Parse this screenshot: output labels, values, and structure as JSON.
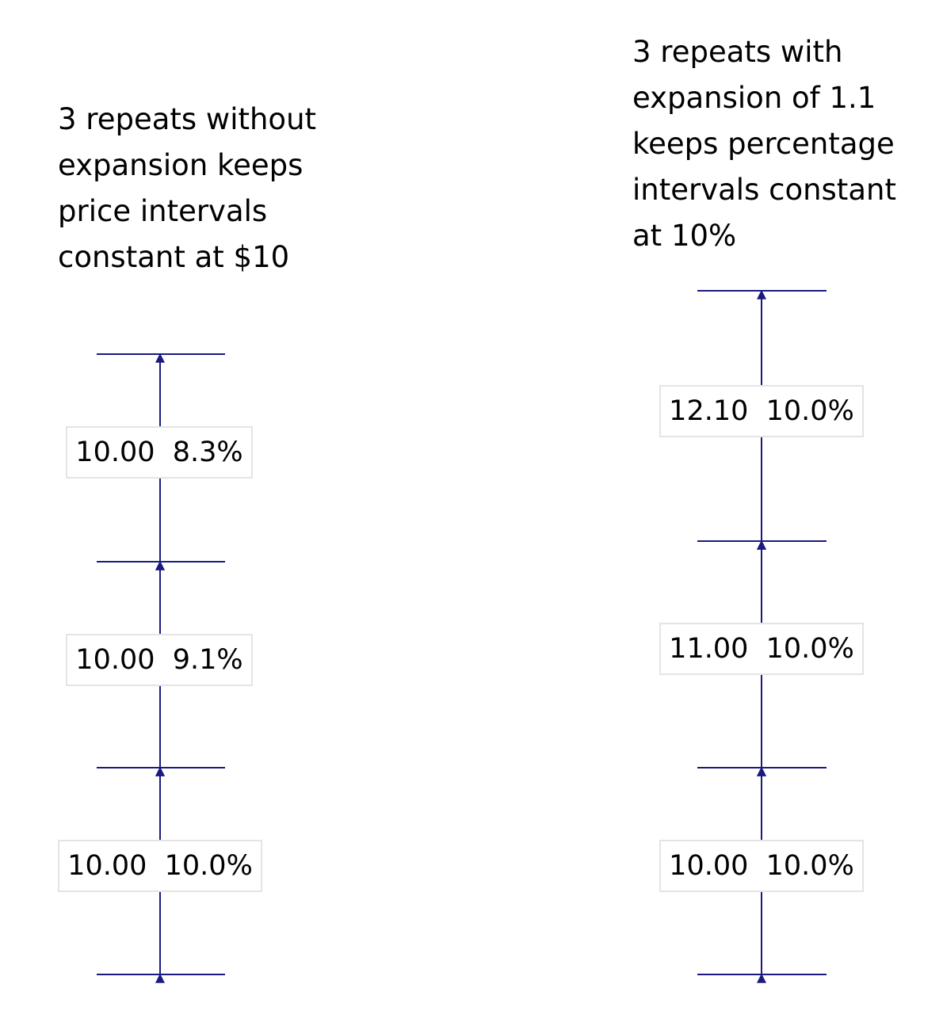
{
  "captions": {
    "left": "3 repeats without\nexpansion keeps\nprice intervals\nconstant at $10",
    "right": "3 repeats with\nexpansion of 1.1\nkeeps percentage\nintervals constant\nat 10%"
  },
  "colors": {
    "line": "#1a1a80",
    "box_border": "#e4e4e4",
    "text": "#000000"
  },
  "left_stack": {
    "labels": [
      {
        "amount": "10.00",
        "percent": "8.3%"
      },
      {
        "amount": "10.00",
        "percent": "9.1%"
      },
      {
        "amount": "10.00",
        "percent": "10.0%"
      }
    ]
  },
  "right_stack": {
    "labels": [
      {
        "amount": "12.10",
        "percent": "10.0%"
      },
      {
        "amount": "11.00",
        "percent": "10.0%"
      },
      {
        "amount": "10.00",
        "percent": "10.0%"
      }
    ]
  }
}
